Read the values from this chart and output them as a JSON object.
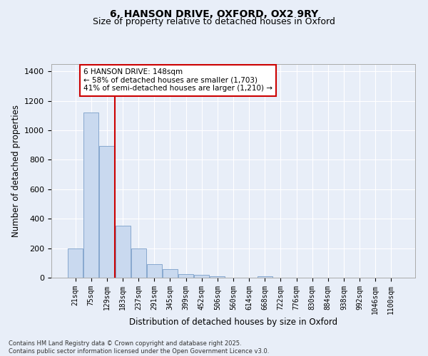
{
  "title1": "6, HANSON DRIVE, OXFORD, OX2 9RY",
  "title2": "Size of property relative to detached houses in Oxford",
  "xlabel": "Distribution of detached houses by size in Oxford",
  "ylabel": "Number of detached properties",
  "categories": [
    "21sqm",
    "75sqm",
    "129sqm",
    "183sqm",
    "237sqm",
    "291sqm",
    "345sqm",
    "399sqm",
    "452sqm",
    "506sqm",
    "560sqm",
    "614sqm",
    "668sqm",
    "722sqm",
    "776sqm",
    "830sqm",
    "884sqm",
    "938sqm",
    "992sqm",
    "1046sqm",
    "1100sqm"
  ],
  "values": [
    197,
    1120,
    895,
    355,
    198,
    92,
    57,
    25,
    18,
    11,
    0,
    0,
    11,
    0,
    0,
    0,
    0,
    0,
    0,
    0,
    0
  ],
  "bar_color": "#c9d9ef",
  "bar_edge_color": "#7a9ec8",
  "vline_color": "#cc0000",
  "vline_pos": 2.5,
  "annotation_box_text": "6 HANSON DRIVE: 148sqm\n← 58% of detached houses are smaller (1,703)\n41% of semi-detached houses are larger (1,210) →",
  "annotation_box_color": "#cc0000",
  "annotation_box_fill": "#ffffff",
  "bg_color": "#e8eef8",
  "grid_color": "#ffffff",
  "ylim": [
    0,
    1450
  ],
  "yticks": [
    0,
    200,
    400,
    600,
    800,
    1000,
    1200,
    1400
  ],
  "footer1": "Contains HM Land Registry data © Crown copyright and database right 2025.",
  "footer2": "Contains public sector information licensed under the Open Government Licence v3.0."
}
